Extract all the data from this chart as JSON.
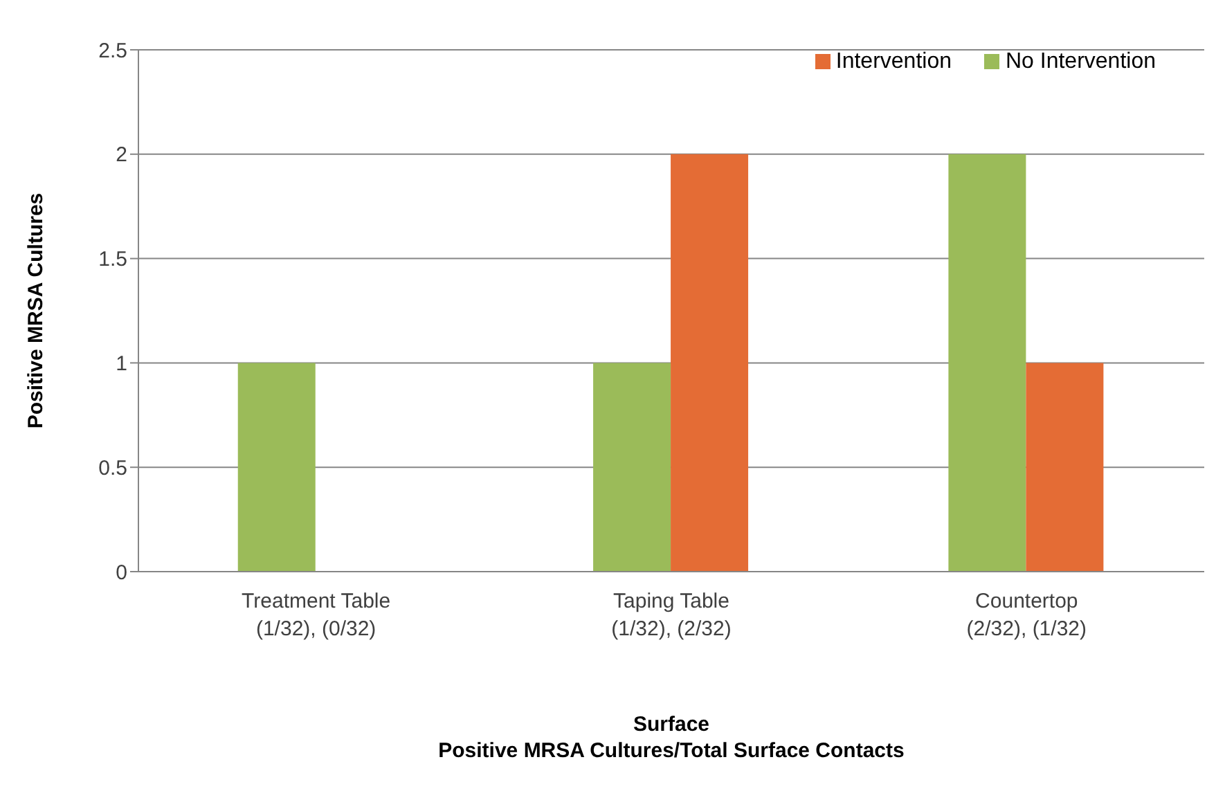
{
  "chart_data": {
    "type": "bar",
    "xlabel": "Surface\nPositive MRSA Cultures/Total Surface Contacts",
    "ylabel": "Positive MRSA Cultures",
    "categories": [
      "Treatment Table\n(1/32), (0/32)",
      "Taping Table\n(1/32), (2/32)",
      "Countertop\n(2/32), (1/32)"
    ],
    "series": [
      {
        "name": "No Intervention",
        "color": "#9bbb59",
        "values": [
          1,
          1,
          2
        ]
      },
      {
        "name": "Intervention",
        "color": "#e46c35",
        "values": [
          0,
          2,
          1
        ]
      }
    ],
    "ylim": [
      0,
      2.5
    ],
    "yticks": [
      0,
      0.5,
      1,
      1.5,
      2,
      2.5
    ],
    "grid": "y",
    "legend": "top right"
  }
}
